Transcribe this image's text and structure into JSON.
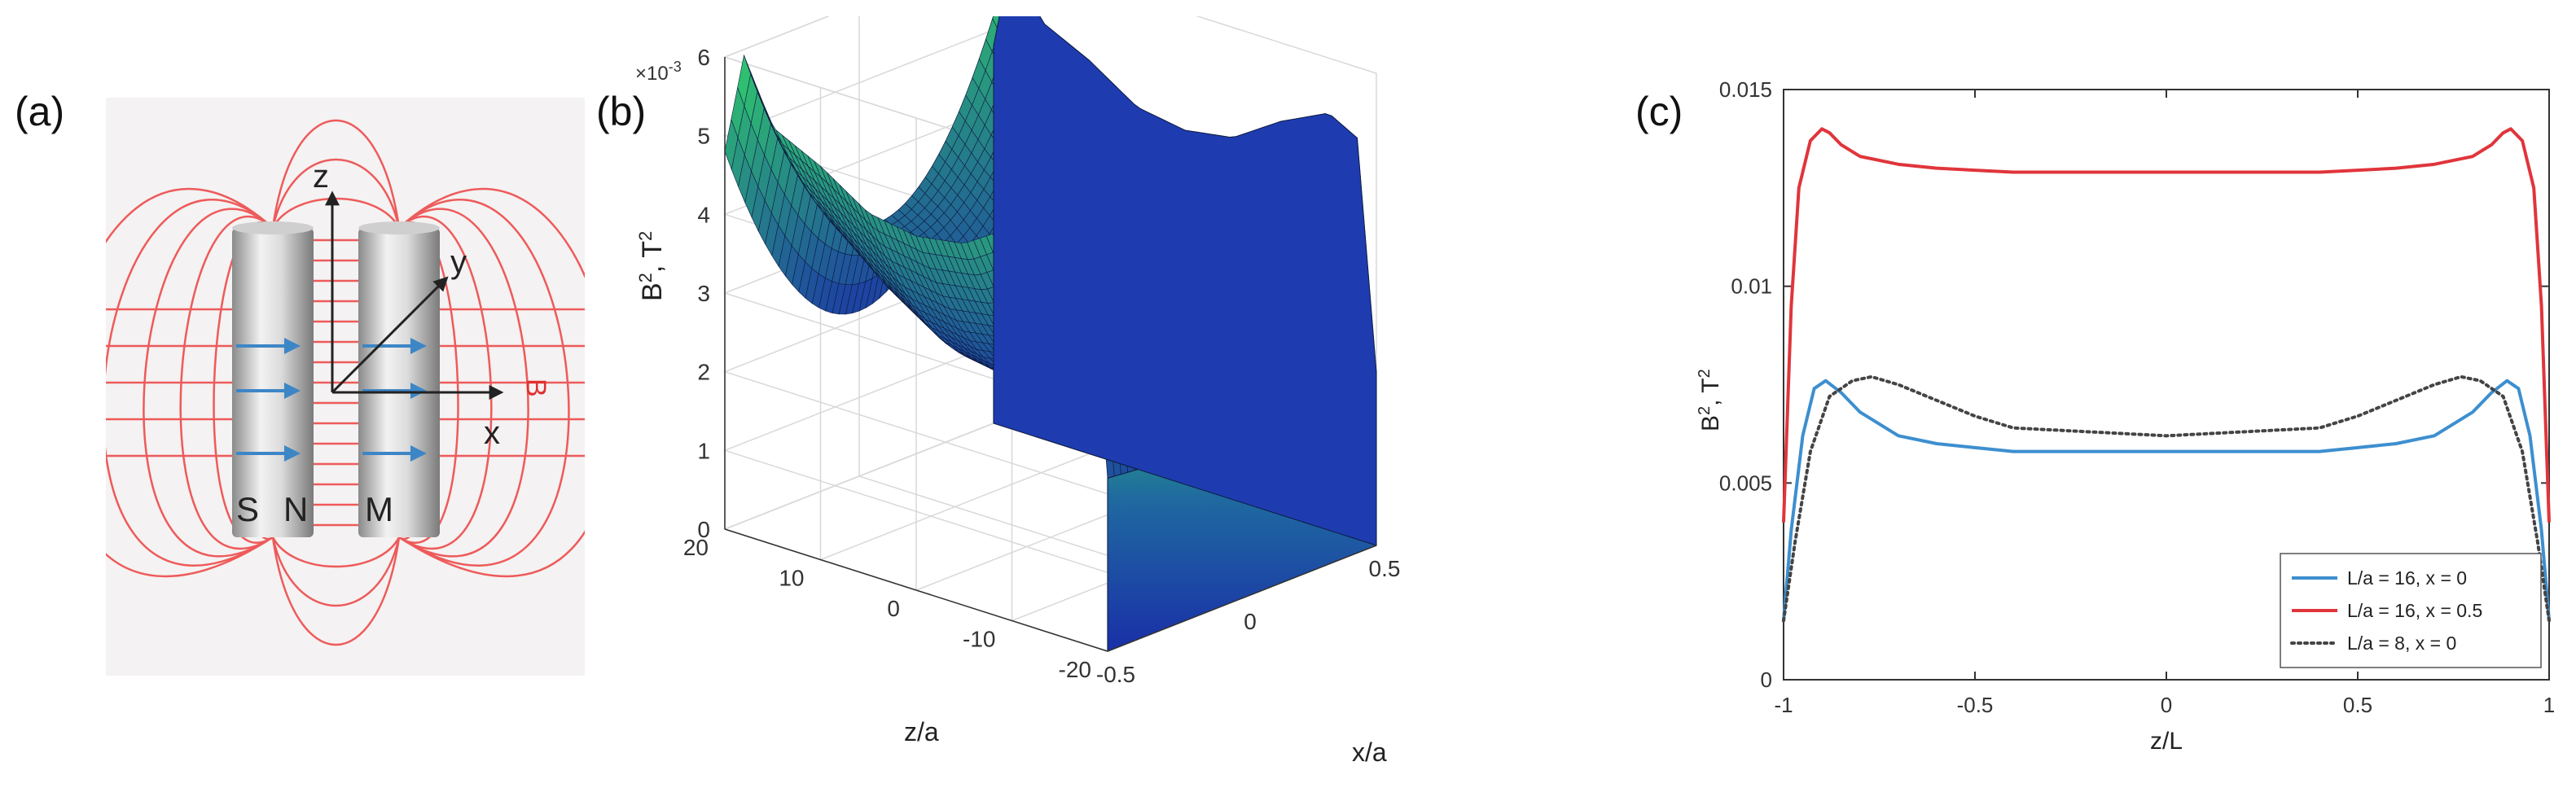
{
  "panels": {
    "a": {
      "label": "(a)",
      "axis_labels": {
        "z": "z",
        "y": "y",
        "x": "x",
        "field": "B"
      },
      "magnet_labels": {
        "s": "S",
        "n": "N",
        "m": "M"
      }
    },
    "b": {
      "label": "(b)"
    },
    "c": {
      "label": "(c)"
    }
  },
  "colors": {
    "field_lines": "#ee5a5a",
    "arrows": "#3d86c6",
    "surface_low": "#1a2fa8",
    "surface_high": "#2fbf6a",
    "series_blue": "#3d8fcf",
    "series_red": "#e0353b",
    "series_dotted": "#444444"
  },
  "chart_data": [
    {
      "type": "surface",
      "xlabel": "x/a",
      "ylabel": "z/a",
      "zlabel_main": "B",
      "zlabel_sup": "2",
      "zlabel_unit": ", T",
      "zlabel_unit_sup": "2",
      "scale_base": "×10",
      "scale_exp": "-3",
      "xlim": [
        -0.5,
        0.5
      ],
      "ylim": [
        -20,
        20
      ],
      "zlim": [
        0,
        6
      ],
      "x_ticks": [
        {
          "value": -0.5,
          "label": "-0.5"
        },
        {
          "value": 0,
          "label": "0"
        },
        {
          "value": 0.5,
          "label": "0.5"
        }
      ],
      "y_ticks": [
        {
          "value": -20,
          "label": "-20"
        },
        {
          "value": -10,
          "label": "-10"
        },
        {
          "value": 0,
          "label": "0"
        },
        {
          "value": 10,
          "label": "10"
        },
        {
          "value": 20,
          "label": "20"
        }
      ],
      "z_ticks": [
        {
          "value": 0,
          "label": "0"
        },
        {
          "value": 1,
          "label": "1"
        },
        {
          "value": 2,
          "label": "2"
        },
        {
          "value": 3,
          "label": "3"
        },
        {
          "value": 4,
          "label": "4"
        },
        {
          "value": 5,
          "label": "5"
        },
        {
          "value": 6,
          "label": "6"
        }
      ],
      "center_profile": {
        "z": [
          -20,
          -18,
          -15,
          -10,
          -5,
          0,
          5,
          10,
          15,
          18,
          20
        ],
        "B2_1e3": [
          2.1,
          3.3,
          3.1,
          2.5,
          2.1,
          2.0,
          2.1,
          2.5,
          3.1,
          3.3,
          2.1
        ]
      },
      "edge_profile": {
        "z": [
          -20,
          -18,
          -15,
          -10,
          -5,
          0,
          5,
          10,
          15,
          18,
          20
        ],
        "B2_1e3": [
          2.2,
          5.1,
          5.3,
          5.0,
          4.6,
          4.5,
          4.6,
          5.0,
          5.3,
          6.1,
          4.8
        ]
      },
      "grid": true
    },
    {
      "type": "line",
      "xlabel": "z/L",
      "ylabel_main": "B",
      "ylabel_sup": "2",
      "ylabel_unit": ", T",
      "ylabel_unit_sup": "2",
      "xlim": [
        -1,
        1
      ],
      "ylim": [
        0,
        0.015
      ],
      "x_ticks": [
        {
          "value": -1,
          "label": "-1"
        },
        {
          "value": -0.5,
          "label": "-0.5"
        },
        {
          "value": 0,
          "label": "0"
        },
        {
          "value": 0.5,
          "label": "0.5"
        },
        {
          "value": 1,
          "label": "1"
        }
      ],
      "y_ticks": [
        {
          "value": 0,
          "label": "0"
        },
        {
          "value": 0.005,
          "label": "0.005"
        },
        {
          "value": 0.01,
          "label": "0.01"
        },
        {
          "value": 0.015,
          "label": "0.015"
        }
      ],
      "legend_position": "bottom-right",
      "grid": false,
      "series": [
        {
          "name": "L/a = 16, x = 0",
          "style": "solid",
          "color": "#3d8fcf",
          "x": [
            -1,
            -0.98,
            -0.95,
            -0.92,
            -0.89,
            -0.85,
            -0.8,
            -0.7,
            -0.6,
            -0.5,
            -0.4,
            -0.2,
            0,
            0.2,
            0.4,
            0.5,
            0.6,
            0.7,
            0.8,
            0.85,
            0.89,
            0.92,
            0.95,
            0.98,
            1
          ],
          "y": [
            0.0015,
            0.0038,
            0.0062,
            0.0074,
            0.0076,
            0.0073,
            0.0068,
            0.0062,
            0.006,
            0.0059,
            0.0058,
            0.0058,
            0.0058,
            0.0058,
            0.0058,
            0.0059,
            0.006,
            0.0062,
            0.0068,
            0.0073,
            0.0076,
            0.0074,
            0.0062,
            0.0038,
            0.0015
          ]
        },
        {
          "name": "L/a = 16, x = 0.5",
          "style": "solid",
          "color": "#e0353b",
          "x": [
            -1,
            -0.98,
            -0.96,
            -0.93,
            -0.9,
            -0.88,
            -0.85,
            -0.8,
            -0.7,
            -0.6,
            -0.4,
            -0.2,
            0,
            0.2,
            0.4,
            0.6,
            0.7,
            0.8,
            0.85,
            0.88,
            0.9,
            0.93,
            0.96,
            0.98,
            1
          ],
          "y": [
            0.004,
            0.0095,
            0.0125,
            0.0137,
            0.014,
            0.0139,
            0.0136,
            0.0133,
            0.0131,
            0.013,
            0.0129,
            0.0129,
            0.0129,
            0.0129,
            0.0129,
            0.013,
            0.0131,
            0.0133,
            0.0136,
            0.0139,
            0.014,
            0.0137,
            0.0125,
            0.0095,
            0.004
          ]
        },
        {
          "name": "L/a = 8, x = 0",
          "style": "dotted",
          "color": "#444444",
          "x": [
            -1,
            -0.97,
            -0.93,
            -0.88,
            -0.82,
            -0.77,
            -0.7,
            -0.6,
            -0.5,
            -0.4,
            -0.2,
            0,
            0.2,
            0.4,
            0.5,
            0.6,
            0.7,
            0.77,
            0.82,
            0.88,
            0.93,
            0.97,
            1
          ],
          "y": [
            0.0015,
            0.0035,
            0.0058,
            0.0072,
            0.0076,
            0.0077,
            0.0075,
            0.0071,
            0.0067,
            0.0064,
            0.0063,
            0.0062,
            0.0063,
            0.0064,
            0.0067,
            0.0071,
            0.0075,
            0.0077,
            0.0076,
            0.0072,
            0.0058,
            0.0035,
            0.0015
          ]
        }
      ]
    }
  ]
}
